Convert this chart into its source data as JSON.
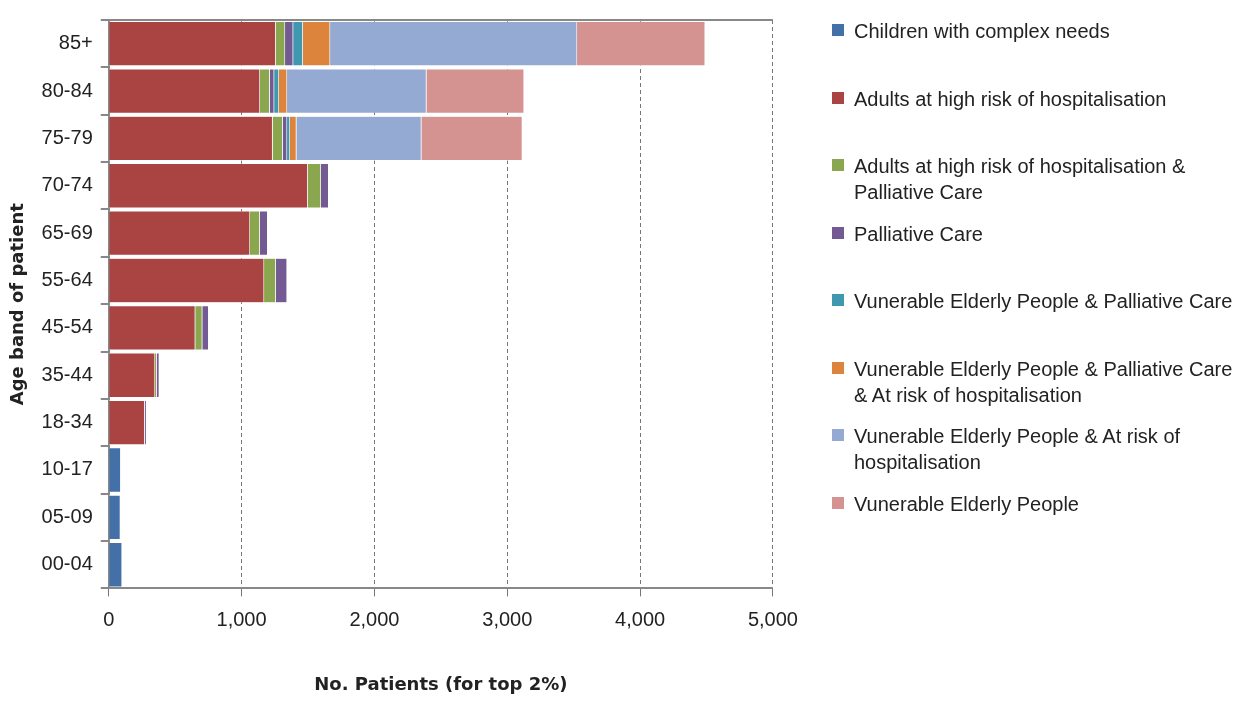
{
  "chart_data": {
    "type": "bar",
    "orientation": "horizontal",
    "stacked": true,
    "xlabel": "No. Patients (for top 2%)",
    "ylabel": "Age band of patient",
    "categories": [
      "85+",
      "80-84",
      "75-79",
      "70-74",
      "65-69",
      "55-64",
      "45-54",
      "35-44",
      "18-34",
      "10-17",
      "05-09",
      "00-04"
    ],
    "series": [
      {
        "name": "Children with complex needs",
        "color": "#4470a8",
        "values": [
          0,
          0,
          0,
          0,
          0,
          0,
          0,
          0,
          0,
          90,
          87,
          100
        ]
      },
      {
        "name": "Adults at high risk of hospitalisation",
        "color": "#a94442",
        "values": [
          1257,
          1138,
          1233,
          1498,
          1063,
          1169,
          651,
          348,
          270,
          0,
          0,
          0
        ]
      },
      {
        "name": "Adults at high risk of hospitalisation & Palliative Care",
        "color": "#8aa64f",
        "values": [
          70,
          73,
          76,
          99,
          74,
          88,
          53,
          13,
          0,
          0,
          0,
          0
        ]
      },
      {
        "name": "Palliative Care",
        "color": "#735a92",
        "values": [
          61,
          34,
          33,
          58,
          59,
          85,
          48,
          19,
          14,
          0,
          0,
          0
        ]
      },
      {
        "name": "Vunerable Elderly People & Palliative Care",
        "color": "#4098b0",
        "values": [
          73,
          36,
          22,
          0,
          0,
          0,
          0,
          0,
          0,
          0,
          0,
          0
        ]
      },
      {
        "name": "Vunerable Elderly People & Palliative Care & At risk of hospitalisation",
        "color": "#dc843c",
        "values": [
          205,
          61,
          48,
          0,
          0,
          0,
          0,
          0,
          0,
          0,
          0,
          0
        ]
      },
      {
        "name": "Vunerable Elderly People & At risk of hospitalisation",
        "color": "#94aad2",
        "values": [
          1859,
          1049,
          941,
          0,
          0,
          0,
          0,
          0,
          0,
          0,
          0,
          0
        ]
      },
      {
        "name": "Vunerable Elderly People",
        "color": "#d49291",
        "values": [
          964,
          735,
          760,
          0,
          0,
          0,
          0,
          0,
          0,
          0,
          0,
          0
        ]
      }
    ],
    "xlim": [
      0,
      5000
    ],
    "xticks": [
      {
        "value": 0,
        "label": "0"
      },
      {
        "value": 1000,
        "label": "1,000"
      },
      {
        "value": 2000,
        "label": "2,000"
      },
      {
        "value": 3000,
        "label": "3,000"
      },
      {
        "value": 4000,
        "label": "4,000"
      },
      {
        "value": 5000,
        "label": "5,000"
      }
    ],
    "grid": "x",
    "legend": "right"
  }
}
